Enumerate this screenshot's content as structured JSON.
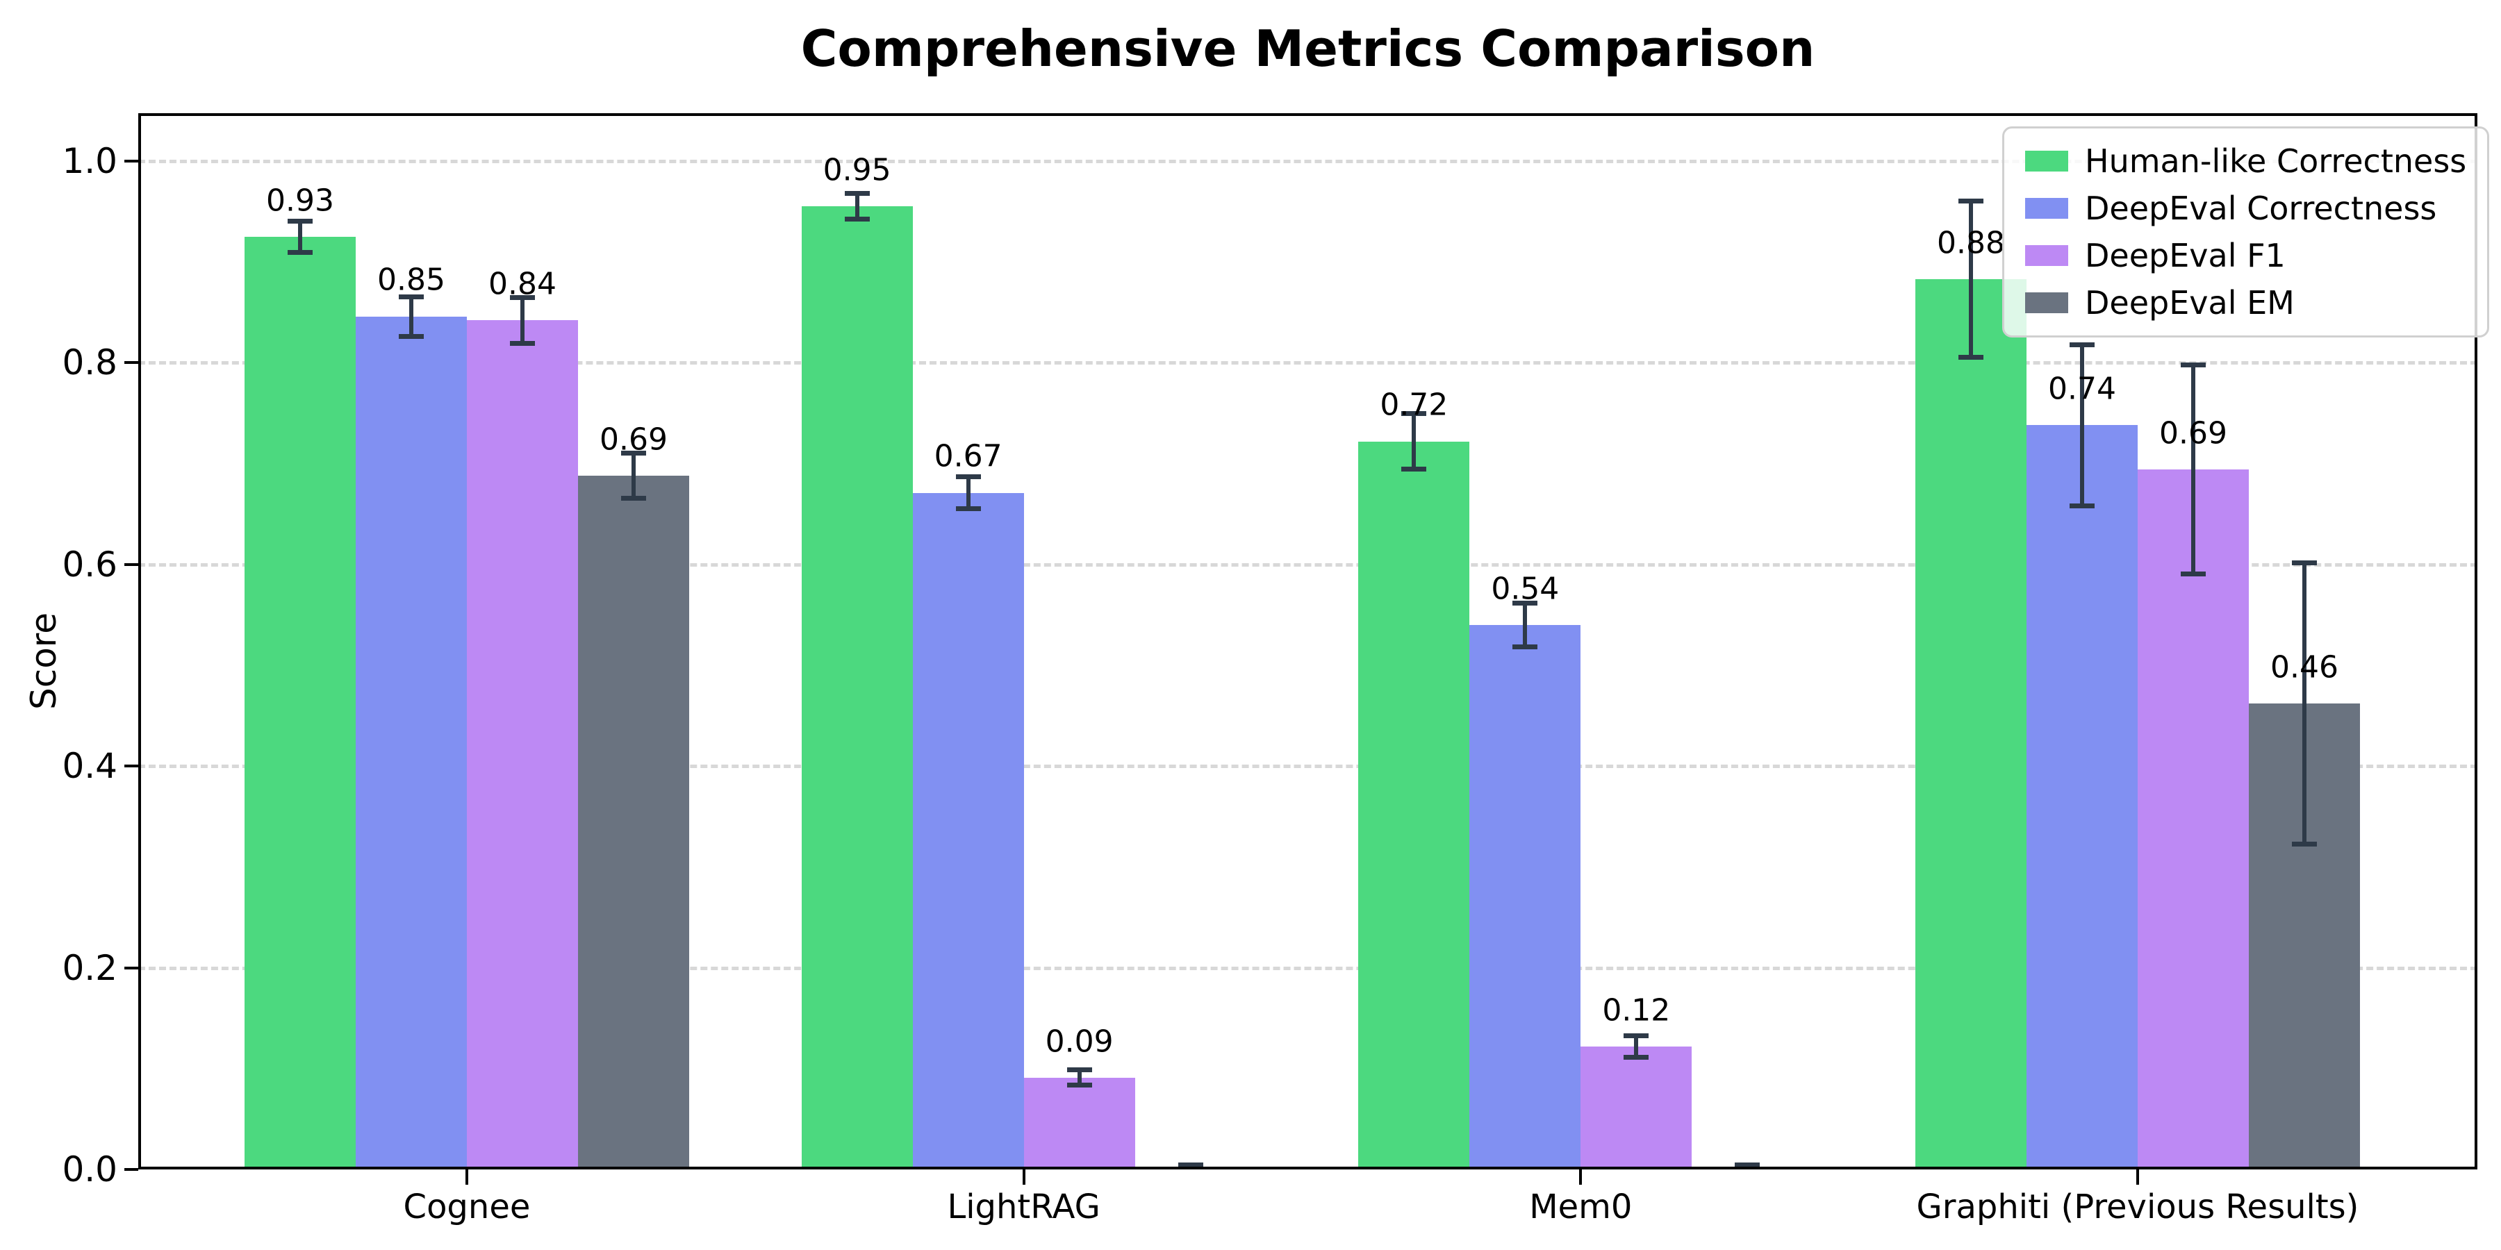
{
  "figure": {
    "title": "Comprehensive Metrics Comparison",
    "ylabel": "Score"
  },
  "chart_data": {
    "type": "bar",
    "title": "Comprehensive Metrics Comparison",
    "xlabel": "",
    "ylabel": "Score",
    "categories": [
      "Cognee",
      "LightRAG",
      "Mem0",
      "Graphiti (Previous Results)"
    ],
    "series": [
      {
        "name": "Human-like Correctness",
        "color": "#4cd97f",
        "values": [
          0.925,
          0.955,
          0.722,
          0.883
        ],
        "errors": [
          0.016,
          0.013,
          0.028,
          0.078
        ],
        "labels": [
          "0.93",
          "0.95",
          "0.72",
          "0.88"
        ]
      },
      {
        "name": "DeepEval Correctness",
        "color": "#8190f2",
        "values": [
          0.846,
          0.671,
          0.54,
          0.738
        ],
        "errors": [
          0.02,
          0.016,
          0.022,
          0.08
        ],
        "labels": [
          "0.85",
          "0.67",
          "0.54",
          "0.74"
        ]
      },
      {
        "name": "DeepEval F1",
        "color": "#bd89f4",
        "values": [
          0.842,
          0.091,
          0.122,
          0.694
        ],
        "errors": [
          0.023,
          0.008,
          0.011,
          0.104
        ],
        "labels": [
          "0.84",
          "0.09",
          "0.12",
          "0.69"
        ]
      },
      {
        "name": "DeepEval EM",
        "color": "#6a7380",
        "values": [
          0.688,
          0.002,
          0.002,
          0.462
        ],
        "errors": [
          0.023,
          0.003,
          0.003,
          0.14
        ],
        "labels": [
          "0.69",
          null,
          null,
          "0.46"
        ]
      }
    ],
    "yticks": [
      "0.0",
      "0.2",
      "0.4",
      "0.6",
      "0.8",
      "1.0"
    ],
    "ylim": [
      0,
      1.047
    ],
    "grid": "horizontal-dashed",
    "legend_position": "upper-right",
    "error_bar_color": "#2e3a48",
    "gridline_color": "#d8d8d8"
  }
}
